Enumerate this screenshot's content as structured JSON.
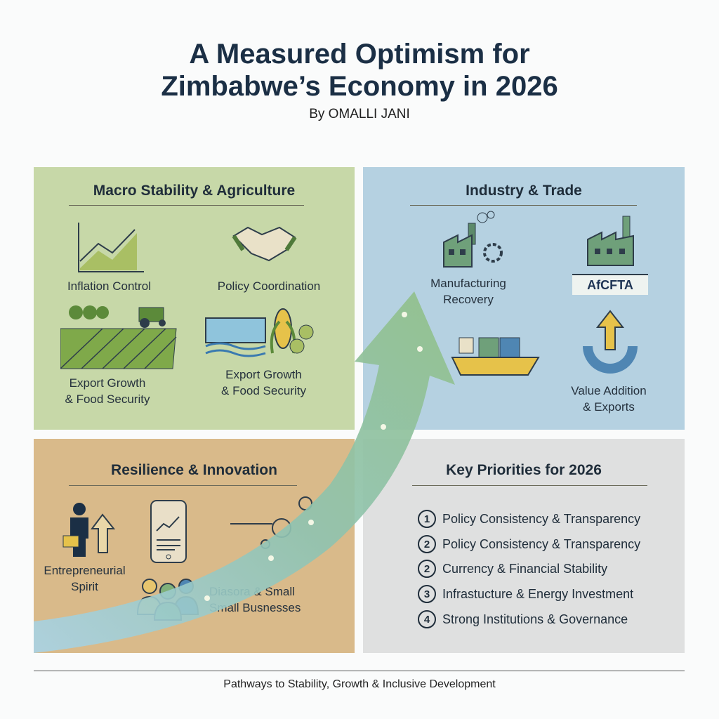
{
  "header": {
    "title_line1": "A Measured Optimism for",
    "title_line2": "Zimbabwe’s Economy in 2026",
    "byline": "By OMALLI JANI"
  },
  "panels": {
    "macro": {
      "title": "Macro Stability & Agriculture",
      "items": [
        {
          "label": "Inflation Control",
          "icon": "line-chart-icon"
        },
        {
          "label": "Policy Coordination",
          "icon": "handshake-icon"
        },
        {
          "label": "Export Growth\n& Food Security",
          "icon": "farm-field-icon"
        },
        {
          "label": "Export Growth\n& Food Security",
          "icon": "dam-maize-icon"
        }
      ]
    },
    "industry": {
      "title": "Industry & Trade",
      "items": [
        {
          "label": "Manufacturing\nRecovery",
          "icon": "factory-gear-icon"
        },
        {
          "label": "AfCFTA",
          "icon": "factory-africa-icon"
        },
        {
          "label": "",
          "icon": "cargo-ship-icon"
        },
        {
          "label": "Value Addition\n& Exports",
          "icon": "up-arrow-cycle-icon"
        }
      ]
    },
    "resilience": {
      "title": "Resilience & Innovation",
      "items": [
        {
          "label": "Entrepreneurial\nSpirit",
          "icon": "businessperson-arrow-icon"
        },
        {
          "label": "",
          "icon": "mobile-chart-icon"
        },
        {
          "label": "Diasora & Small\nSmall Busnesses",
          "icon": "people-group-icon"
        }
      ]
    },
    "priorities": {
      "title": "Key Priorities for 2026",
      "items": [
        {
          "num": "1",
          "label": "Policy Consistency & Transparency"
        },
        {
          "num": "2",
          "label": "Policy Consistency & Transparency"
        },
        {
          "num": "2",
          "label": "Currency & Financial Stability"
        },
        {
          "num": "3",
          "label": "Infrastucture & Energy Investment"
        },
        {
          "num": "4",
          "label": "Strong Institutions & Governance"
        }
      ]
    }
  },
  "footer": "Pathways to Stability, Growth & Inclusive Development",
  "colors": {
    "green": "#c7d8a8",
    "blue": "#b5d1e1",
    "tan": "#d9ba8a",
    "gray": "#dfe0e0",
    "navy": "#1b2f45"
  }
}
